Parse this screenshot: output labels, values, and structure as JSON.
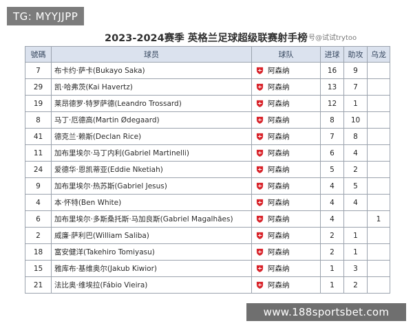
{
  "overlay": {
    "tag": "TG: MYYJJPP"
  },
  "header": {
    "title": "2023-2024赛季  英格兰足球超级联赛射手榜",
    "source_mark": "号@试试trytoo"
  },
  "table": {
    "columns": [
      "號碼",
      "球员",
      "球队",
      "进球",
      "助攻",
      "乌龙"
    ],
    "team_badge_color": "#d8232a",
    "rows": [
      {
        "number": "7",
        "player": "布卡约·萨卡(Bukayo Saka)",
        "team": "阿森纳",
        "goals": "16",
        "assists": "9",
        "own_goals": ""
      },
      {
        "number": "29",
        "player": "凯·哈弗茨(Kai Havertz)",
        "team": "阿森纳",
        "goals": "13",
        "assists": "7",
        "own_goals": ""
      },
      {
        "number": "19",
        "player": "莱昂德罗·特罗萨德(Leandro Trossard)",
        "team": "阿森纳",
        "goals": "12",
        "assists": "1",
        "own_goals": ""
      },
      {
        "number": "8",
        "player": "马丁·厄德高(Martin Ødegaard)",
        "team": "阿森纳",
        "goals": "8",
        "assists": "10",
        "own_goals": ""
      },
      {
        "number": "41",
        "player": "德克兰·赖斯(Declan Rice)",
        "team": "阿森纳",
        "goals": "7",
        "assists": "8",
        "own_goals": ""
      },
      {
        "number": "11",
        "player": "加布里埃尔·马丁内利(Gabriel Martinelli)",
        "team": "阿森纳",
        "goals": "6",
        "assists": "4",
        "own_goals": ""
      },
      {
        "number": "24",
        "player": "爱德华·恩凯蒂亚(Eddie Nketiah)",
        "team": "阿森纳",
        "goals": "5",
        "assists": "2",
        "own_goals": ""
      },
      {
        "number": "9",
        "player": "加布里埃尔·热苏斯(Gabriel Jesus)",
        "team": "阿森纳",
        "goals": "4",
        "assists": "5",
        "own_goals": ""
      },
      {
        "number": "4",
        "player": "本·怀特(Ben White)",
        "team": "阿森纳",
        "goals": "4",
        "assists": "4",
        "own_goals": ""
      },
      {
        "number": "6",
        "player": "加布里埃尔·多斯桑托斯·马加良斯(Gabriel Magalhães)",
        "team": "阿森纳",
        "goals": "4",
        "assists": "",
        "own_goals": "1"
      },
      {
        "number": "2",
        "player": "威廉·萨利巴(William Saliba)",
        "team": "阿森纳",
        "goals": "2",
        "assists": "1",
        "own_goals": ""
      },
      {
        "number": "18",
        "player": "富安健洋(Takehiro Tomiyasu)",
        "team": "阿森纳",
        "goals": "2",
        "assists": "1",
        "own_goals": ""
      },
      {
        "number": "15",
        "player": "雅库布·基维奥尔(Jakub Kiwior)",
        "team": "阿森纳",
        "goals": "1",
        "assists": "3",
        "own_goals": ""
      },
      {
        "number": "21",
        "player": "法比奥·维埃拉(Fábio Vieira)",
        "team": "阿森纳",
        "goals": "1",
        "assists": "2",
        "own_goals": ""
      }
    ]
  },
  "footer": {
    "url": "www.188sportsbet.com"
  }
}
